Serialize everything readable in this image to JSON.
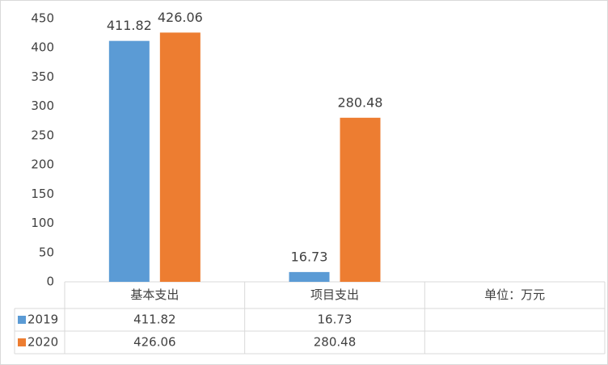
{
  "chart_data": {
    "type": "bar",
    "categories": [
      "基本支出",
      "项目支出",
      "单位：万元"
    ],
    "series": [
      {
        "name": "2019",
        "color": "#5b9bd5",
        "values": [
          411.82,
          16.73,
          null
        ]
      },
      {
        "name": "2020",
        "color": "#ed7d31",
        "values": [
          426.06,
          280.48,
          null
        ]
      }
    ],
    "ylim": [
      0,
      450
    ],
    "yticks": [
      0,
      50,
      100,
      150,
      200,
      250,
      300,
      350,
      400,
      450
    ],
    "grid": false,
    "data_table": true
  }
}
